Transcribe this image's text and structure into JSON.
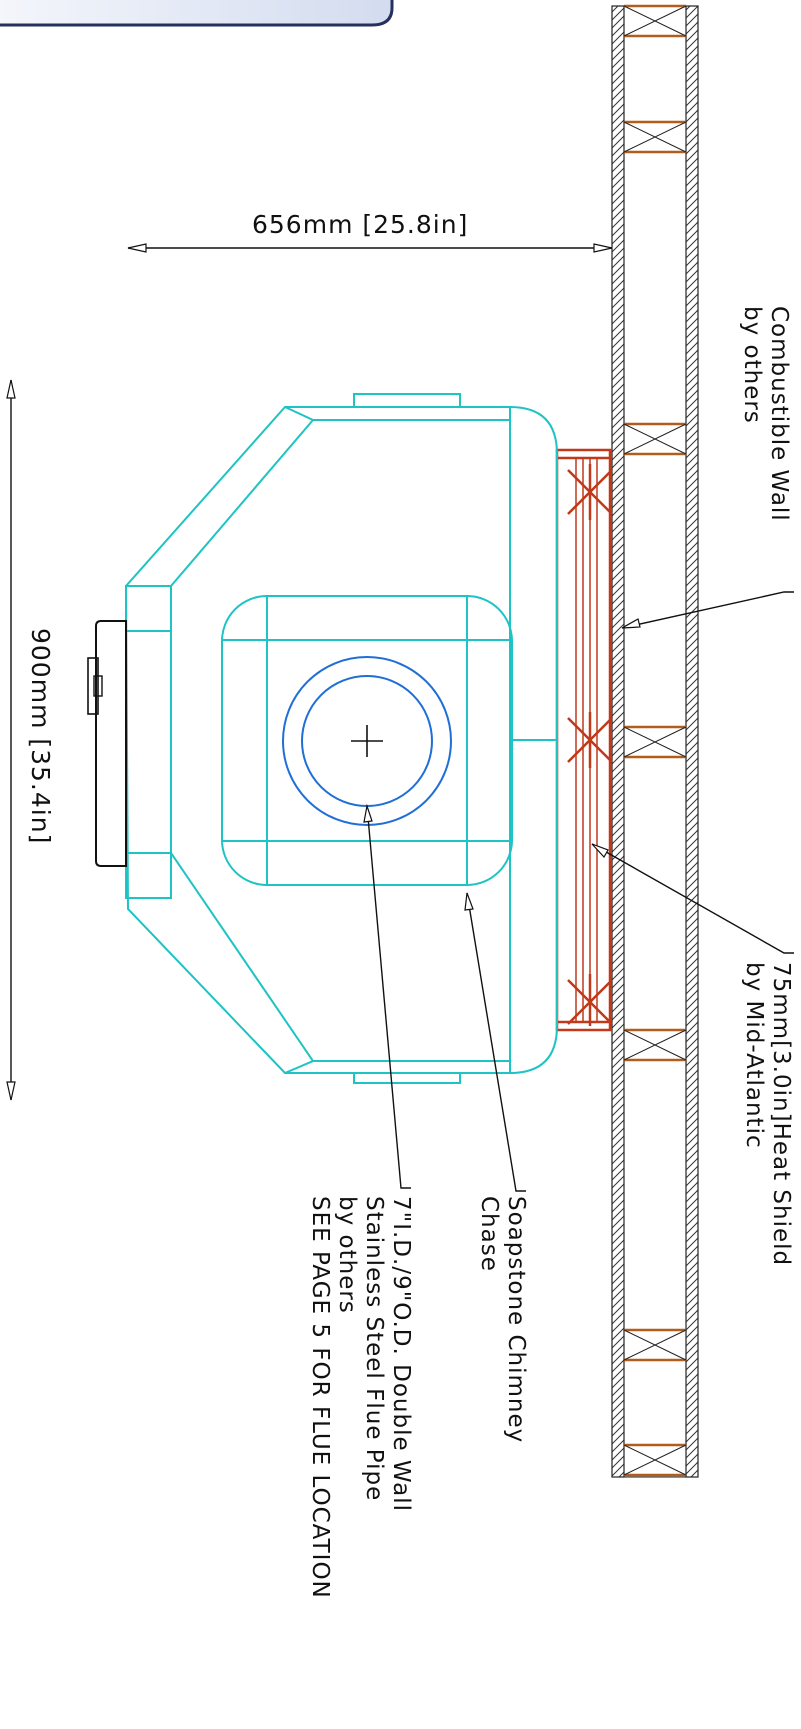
{
  "labels": {
    "dim_depth": "656mm [25.8in]",
    "dim_width": "900mm [35.4in]",
    "wall_line1": "Combustible Wall",
    "wall_line2": "by others",
    "shield_line1": "75mm[3.0in]Heat Shield",
    "shield_line2": "by Mid-Atlantic",
    "chase_line1": "Soapstone Chimney",
    "chase_line2": "Chase",
    "flue_line1": "7\"I.D./9\"O.D. Double Wall",
    "flue_line2": "Stainless Steel Flue Pipe",
    "flue_line3": "by others",
    "flue_line4": "SEE PAGE 5 FOR FLUE LOCATION"
  },
  "colors": {
    "stove_outline": "#1ec3c3",
    "flue_pipe": "#1f6fd6",
    "heat_shield": "#c0391b",
    "wall_studs": "#b15d1d",
    "annotation": "#111111",
    "title_tab_fill": "#dfe6f4",
    "title_tab_border": "#24305e"
  }
}
